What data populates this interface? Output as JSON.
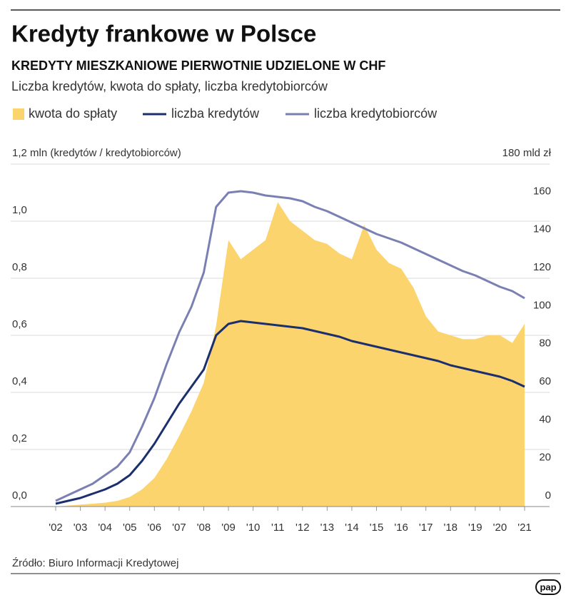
{
  "header": {
    "title": "Kredyty frankowe w Polsce",
    "subtitle": "KREDYTY MIESZKANIOWE PIERWOTNIE UDZIELONE W CHF",
    "description": "Liczba kredytów, kwota do spłaty, liczba kredytobiorców"
  },
  "chart_data": {
    "type": "line",
    "x": [
      2002.0,
      2002.5,
      2003.0,
      2003.5,
      2004.0,
      2004.5,
      2005.0,
      2005.5,
      2006.0,
      2006.5,
      2007.0,
      2007.5,
      2008.0,
      2008.5,
      2009.0,
      2009.5,
      2010.0,
      2010.5,
      2011.0,
      2011.5,
      2012.0,
      2012.5,
      2013.0,
      2013.5,
      2014.0,
      2014.5,
      2015.0,
      2015.5,
      2016.0,
      2016.5,
      2017.0,
      2017.5,
      2018.0,
      2018.5,
      2019.0,
      2019.5,
      2020.0,
      2020.5,
      2021.0
    ],
    "series": [
      {
        "name": "kwota do spłaty",
        "type": "area",
        "axis": "y2",
        "color": "#fcd46e",
        "values": [
          0,
          0.5,
          1,
          1.5,
          2,
          3,
          5,
          9,
          15,
          25,
          37,
          50,
          65,
          95,
          140,
          130,
          135,
          140,
          160,
          150,
          145,
          140,
          138,
          133,
          130,
          148,
          135,
          128,
          125,
          115,
          100,
          92,
          90,
          88,
          88,
          90,
          90,
          86,
          96
        ]
      },
      {
        "name": "liczba kredytów",
        "type": "line",
        "color": "#1b2f6e",
        "values": [
          0.01,
          0.02,
          0.03,
          0.045,
          0.06,
          0.08,
          0.11,
          0.16,
          0.22,
          0.29,
          0.36,
          0.42,
          0.48,
          0.6,
          0.64,
          0.65,
          0.645,
          0.64,
          0.635,
          0.63,
          0.625,
          0.615,
          0.605,
          0.595,
          0.58,
          0.57,
          0.56,
          0.55,
          0.54,
          0.53,
          0.52,
          0.51,
          0.495,
          0.485,
          0.475,
          0.465,
          0.455,
          0.44,
          0.42
        ]
      },
      {
        "name": "liczba kredytobiorców",
        "type": "line",
        "color": "#7b80b3",
        "values": [
          0.02,
          0.04,
          0.06,
          0.08,
          0.11,
          0.14,
          0.19,
          0.28,
          0.38,
          0.5,
          0.61,
          0.7,
          0.82,
          1.05,
          1.1,
          1.105,
          1.1,
          1.09,
          1.085,
          1.08,
          1.07,
          1.05,
          1.035,
          1.015,
          0.995,
          0.975,
          0.955,
          0.94,
          0.925,
          0.905,
          0.885,
          0.865,
          0.845,
          0.825,
          0.81,
          0.79,
          0.77,
          0.755,
          0.73
        ]
      }
    ],
    "xlim": [
      2002,
      2021
    ],
    "xticks": [
      {
        "value": 2002,
        "label": "'02"
      },
      {
        "value": 2003,
        "label": "'03"
      },
      {
        "value": 2004,
        "label": "'04"
      },
      {
        "value": 2005,
        "label": "'05"
      },
      {
        "value": 2006,
        "label": "'06"
      },
      {
        "value": 2007,
        "label": "'07"
      },
      {
        "value": 2008,
        "label": "'08"
      },
      {
        "value": 2009,
        "label": "'09"
      },
      {
        "value": 2010,
        "label": "'10"
      },
      {
        "value": 2011,
        "label": "'11"
      },
      {
        "value": 2012,
        "label": "'12"
      },
      {
        "value": 2013,
        "label": "'13"
      },
      {
        "value": 2014,
        "label": "'14"
      },
      {
        "value": 2015,
        "label": "'15"
      },
      {
        "value": 2016,
        "label": "'16"
      },
      {
        "value": 2017,
        "label": "'17"
      },
      {
        "value": 2018,
        "label": "'18"
      },
      {
        "value": 2019,
        "label": "'19"
      },
      {
        "value": 2020,
        "label": "'20"
      },
      {
        "value": 2021,
        "label": "'21"
      }
    ],
    "ylim": [
      0,
      1.2
    ],
    "yticks": [
      {
        "value": 0,
        "label": "0,0"
      },
      {
        "value": 0.2,
        "label": "0,2"
      },
      {
        "value": 0.4,
        "label": "0,4"
      },
      {
        "value": 0.6,
        "label": "0,6"
      },
      {
        "value": 0.8,
        "label": "0,8"
      },
      {
        "value": 1.0,
        "label": "1,0"
      },
      {
        "value": 1.2,
        "label": "1,2 mln (kredytów / kredytobiorców)"
      }
    ],
    "y2lim": [
      0,
      180
    ],
    "y2ticks": [
      0,
      20,
      40,
      60,
      80,
      100,
      120,
      140,
      160,
      {
        "value": 180,
        "label": "180 mld zł"
      }
    ],
    "grid": true
  },
  "footer": {
    "source": "Źródło: Biuro Informacji Kredytowej",
    "logo": "pap"
  }
}
